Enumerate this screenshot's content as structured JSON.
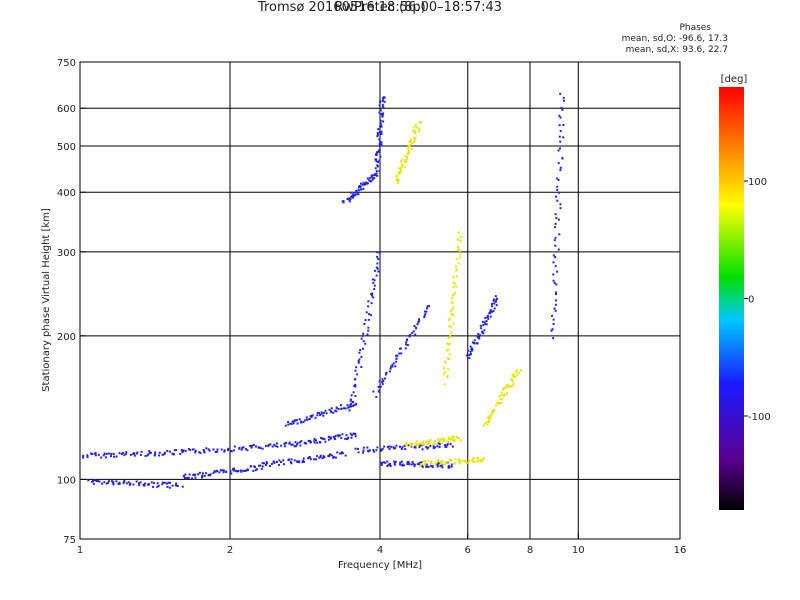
{
  "chart_data": {
    "type": "scatter",
    "title": "Tromsø 20160516 18:56:00–18:57:43",
    "subtitle": "RwPretec (8p)",
    "phase_stats": {
      "heading": "Phases",
      "line_o": "mean, sd,O: -96.6, 17.3",
      "line_x": "mean, sd,X:  93.6, 22.7"
    },
    "xlabel": "Frequency [MHz]",
    "ylabel": "Stationary phase Virtual Height [km]",
    "xscale": "log",
    "yscale": "log",
    "xlim": [
      1,
      16
    ],
    "ylim": [
      75,
      750
    ],
    "x_ticks": [
      1,
      2,
      4,
      6,
      8,
      10,
      16
    ],
    "x_tick_labels": [
      "1",
      "2",
      "4",
      "6",
      "8",
      "10",
      "16"
    ],
    "y_ticks": [
      75,
      100,
      200,
      300,
      400,
      500,
      600,
      750
    ],
    "y_tick_labels": [
      "75",
      "100",
      "200",
      "300",
      "400",
      "500",
      "600",
      "750"
    ],
    "grid_x": [
      2,
      4,
      6,
      8,
      10
    ],
    "grid_y": [
      100,
      200,
      300,
      400,
      500,
      600
    ],
    "colorbar": {
      "label": "[deg]",
      "range": [
        -180,
        180
      ],
      "ticks": [
        100,
        0,
        -100
      ],
      "tick_labels": [
        "100",
        "0",
        "-100"
      ]
    },
    "colors": {
      "o_mode": "#2222ee",
      "x_mode": "#e8e400"
    },
    "series": [
      {
        "mode": "O",
        "phase_deg": -96.6,
        "segments": [
          {
            "x0": 1.0,
            "x1": 1.6,
            "y0": 112,
            "y1": 114
          },
          {
            "x0": 1.6,
            "x1": 2.6,
            "y0": 114,
            "y1": 118
          },
          {
            "x0": 2.6,
            "x1": 3.6,
            "y0": 118,
            "y1": 124
          },
          {
            "x0": 1.05,
            "x1": 1.6,
            "y0": 99,
            "y1": 97
          },
          {
            "x0": 1.6,
            "x1": 2.3,
            "y0": 101,
            "y1": 106
          },
          {
            "x0": 2.3,
            "x1": 3.4,
            "y0": 107,
            "y1": 113
          },
          {
            "x0": 2.6,
            "x1": 3.6,
            "y0": 130,
            "y1": 145
          },
          {
            "x0": 3.4,
            "x1": 3.95,
            "y0": 380,
            "y1": 440
          },
          {
            "x0": 3.95,
            "x1": 4.05,
            "y0": 450,
            "y1": 640
          },
          {
            "x0": 3.5,
            "x1": 4.0,
            "y0": 140,
            "y1": 300
          },
          {
            "x0": 3.9,
            "x1": 5.0,
            "y0": 150,
            "y1": 230
          },
          {
            "x0": 3.6,
            "x1": 5.6,
            "y0": 115,
            "y1": 118
          },
          {
            "x0": 4.0,
            "x1": 5.6,
            "y0": 108,
            "y1": 107
          },
          {
            "x0": 6.0,
            "x1": 6.9,
            "y0": 180,
            "y1": 240
          },
          {
            "x0": 8.9,
            "x1": 9.3,
            "y0": 200,
            "y1": 640
          }
        ]
      },
      {
        "mode": "X",
        "phase_deg": 93.6,
        "segments": [
          {
            "x0": 4.3,
            "x1": 4.8,
            "y0": 420,
            "y1": 560
          },
          {
            "x0": 5.4,
            "x1": 5.8,
            "y0": 160,
            "y1": 330
          },
          {
            "x0": 4.5,
            "x1": 5.8,
            "y0": 118,
            "y1": 122
          },
          {
            "x0": 4.8,
            "x1": 6.5,
            "y0": 108,
            "y1": 110
          },
          {
            "x0": 6.5,
            "x1": 7.6,
            "y0": 130,
            "y1": 170
          }
        ]
      }
    ]
  }
}
